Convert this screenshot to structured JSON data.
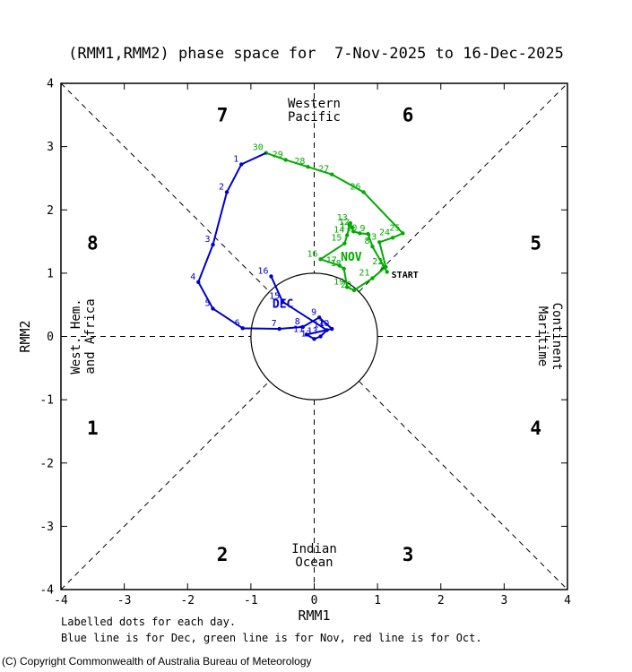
{
  "footer": {
    "line1": "Labelled dots for each day.",
    "line2": "Blue line is for Dec, green line is for Nov, red line is for Oct."
  },
  "copyright": "(C) Copyright Commonwealth of Australia Bureau of Meteorology",
  "chart_data": {
    "type": "line",
    "title": "(RMM1,RMM2) phase space for  7-Nov-2025 to 16-Dec-2025",
    "xlabel": "RMM1",
    "ylabel": "RMM2",
    "xlim": [
      -4,
      4
    ],
    "ylim": [
      -4,
      4
    ],
    "ticks": [
      -4,
      -3,
      -2,
      -1,
      0,
      1,
      2,
      3,
      4
    ],
    "unit_circle_radius": 1,
    "colors": {
      "nov": "#00aa00",
      "dec": "#0000cc",
      "axis": "#000000"
    },
    "phase_labels": [
      {
        "label": "1",
        "x": -3.5,
        "y": -1.45
      },
      {
        "label": "2",
        "x": -1.45,
        "y": -3.45
      },
      {
        "label": "3",
        "x": 1.48,
        "y": -3.45
      },
      {
        "label": "4",
        "x": 3.5,
        "y": -1.45
      },
      {
        "label": "5",
        "x": 3.5,
        "y": 1.47
      },
      {
        "label": "6",
        "x": 1.48,
        "y": 3.5
      },
      {
        "label": "7",
        "x": -1.45,
        "y": 3.5
      },
      {
        "label": "8",
        "x": -3.5,
        "y": 1.47
      }
    ],
    "region_labels": [
      {
        "lines": [
          "Western",
          "Pacific"
        ],
        "x": 0,
        "y": 3.62,
        "rotation": 0
      },
      {
        "lines": [
          "Indian",
          "Ocean"
        ],
        "x": 0,
        "y": -3.42,
        "rotation": 0
      },
      {
        "lines": [
          "Maritime",
          "Continent"
        ],
        "x": 3.55,
        "y": 0,
        "rotation": 90
      },
      {
        "lines": [
          "West. Hem.",
          "and Africa"
        ],
        "x": -3.7,
        "y": 0,
        "rotation": -90
      }
    ],
    "series": [
      {
        "name": "Nov",
        "color": "#00aa00",
        "points": [
          {
            "day": 7,
            "x": 1.15,
            "y": 1.02
          },
          {
            "day": 8,
            "x": 0.92,
            "y": 1.42
          },
          {
            "day": 9,
            "x": 0.85,
            "y": 1.62
          },
          {
            "day": 10,
            "x": 0.72,
            "y": 1.63
          },
          {
            "day": 11,
            "x": 0.62,
            "y": 1.66
          },
          {
            "day": 12,
            "x": 0.6,
            "y": 1.72
          },
          {
            "day": 13,
            "x": 0.57,
            "y": 1.79
          },
          {
            "day": 14,
            "x": 0.52,
            "y": 1.6
          },
          {
            "day": 15,
            "x": 0.48,
            "y": 1.47
          },
          {
            "day": 16,
            "x": 0.1,
            "y": 1.22
          },
          {
            "day": 17,
            "x": 0.4,
            "y": 1.12
          },
          {
            "day": 18,
            "x": 0.47,
            "y": 1.07
          },
          {
            "day": 19,
            "x": 0.52,
            "y": 0.78
          },
          {
            "day": 20,
            "x": 0.63,
            "y": 0.73
          },
          {
            "day": 21,
            "x": 0.92,
            "y": 0.92
          },
          {
            "day": 22,
            "x": 1.13,
            "y": 1.1
          },
          {
            "day": 23,
            "x": 1.03,
            "y": 1.49
          },
          {
            "day": 24,
            "x": 1.24,
            "y": 1.56
          },
          {
            "day": 25,
            "x": 1.4,
            "y": 1.63
          },
          {
            "day": 26,
            "x": 0.78,
            "y": 2.28
          },
          {
            "day": 27,
            "x": 0.28,
            "y": 2.56
          },
          {
            "day": 28,
            "x": -0.1,
            "y": 2.68
          },
          {
            "day": 29,
            "x": -0.45,
            "y": 2.79
          },
          {
            "day": 30,
            "x": -0.76,
            "y": 2.9
          }
        ]
      },
      {
        "name": "Dec",
        "color": "#0000cc",
        "points": [
          {
            "day": 1,
            "x": -1.15,
            "y": 2.72
          },
          {
            "day": 2,
            "x": -1.38,
            "y": 2.28
          },
          {
            "day": 3,
            "x": -1.6,
            "y": 1.45
          },
          {
            "day": 4,
            "x": -1.83,
            "y": 0.86
          },
          {
            "day": 5,
            "x": -1.6,
            "y": 0.44
          },
          {
            "day": 6,
            "x": -1.13,
            "y": 0.13
          },
          {
            "day": 7,
            "x": -0.55,
            "y": 0.12
          },
          {
            "day": 8,
            "x": -0.18,
            "y": 0.15
          },
          {
            "day": 9,
            "x": 0.08,
            "y": 0.3
          },
          {
            "day": 10,
            "x": 0.28,
            "y": 0.12
          },
          {
            "day": 11,
            "x": -0.12,
            "y": 0.03
          },
          {
            "day": 12,
            "x": 0.0,
            "y": -0.04
          },
          {
            "day": 13,
            "x": 0.1,
            "y": 0.0
          },
          {
            "day": 14,
            "x": 0.2,
            "y": 0.1
          },
          {
            "day": 15,
            "x": -0.5,
            "y": 0.55
          },
          {
            "day": 16,
            "x": -0.68,
            "y": 0.95
          }
        ]
      }
    ],
    "annotations": [
      {
        "text": "START",
        "x": 1.22,
        "y": 0.93,
        "color": "#000000",
        "size": 10,
        "anchor": "start",
        "name": "start-label"
      },
      {
        "text": "NOV",
        "x": 0.42,
        "y": 1.2,
        "color": "#00aa00",
        "size": 13,
        "anchor": "start",
        "name": "nov-month-label"
      },
      {
        "text": "DEC",
        "x": -0.66,
        "y": 0.45,
        "color": "#0000cc",
        "size": 13,
        "anchor": "start",
        "name": "dec-month-label"
      }
    ]
  }
}
